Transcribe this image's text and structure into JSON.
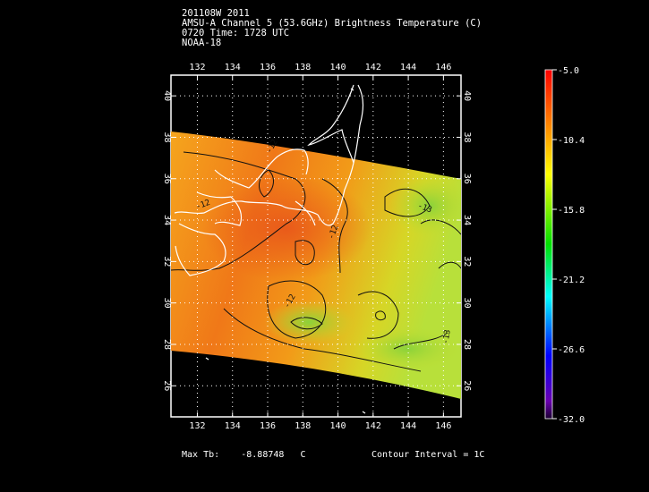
{
  "header": {
    "line1": "201108W 2011",
    "line2": "AMSU-A Channel 5 (53.6GHz) Brightness Temperature (C)",
    "line3": "0720 Time: 1728 UTC",
    "line4": "NOAA-18"
  },
  "map": {
    "lon_ticks": [
      "132",
      "134",
      "136",
      "138",
      "140",
      "142",
      "144",
      "146"
    ],
    "lat_ticks": [
      "40",
      "38",
      "36",
      "34",
      "32",
      "30",
      "28",
      "26"
    ],
    "lon_range": [
      130.5,
      147
    ],
    "lat_range": [
      24.5,
      41
    ],
    "contour_labels": [
      "-13",
      "-12",
      "-12",
      "-12",
      "-12",
      "-13"
    ],
    "grid": "dotted"
  },
  "colorbar": {
    "labels": [
      "-5.0",
      "-10.4",
      "-15.8",
      "-21.2",
      "-26.6",
      "-32.0"
    ],
    "range": [
      -32.0,
      -5.0
    ]
  },
  "footer": {
    "max_label": "Max Tb:",
    "max_value": "-8.88748",
    "max_unit": "C",
    "contour_interval": "Contour Interval = 1C"
  }
}
